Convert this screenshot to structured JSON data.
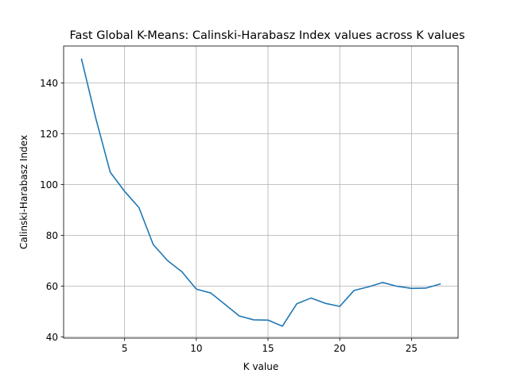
{
  "chart_data": {
    "type": "line",
    "title": "Fast Global K-Means: Calinski-Harabasz Index values across K values",
    "xlabel": "K value",
    "ylabel": "Calinski-Harabasz Index",
    "xlim": [
      0.75,
      28.25
    ],
    "ylim": [
      39.5,
      154.5
    ],
    "xticks": [
      5,
      10,
      15,
      20,
      25
    ],
    "yticks": [
      40,
      60,
      80,
      100,
      120,
      140
    ],
    "grid": true,
    "series": [
      {
        "color": "#1f77b4",
        "x": [
          2,
          3,
          4,
          5,
          6,
          7,
          8,
          9,
          10,
          11,
          12,
          13,
          14,
          15,
          16,
          17,
          18,
          19,
          20,
          21,
          22,
          23,
          24,
          25,
          26,
          27
        ],
        "y": [
          149.3,
          125.9,
          104.8,
          97.3,
          90.9,
          76.3,
          70.0,
          65.6,
          58.8,
          57.3,
          52.8,
          48.2,
          46.7,
          46.6,
          44.2,
          53.0,
          55.3,
          53.2,
          52.0,
          58.3,
          59.7,
          61.4,
          59.9,
          59.1,
          59.2,
          60.8
        ]
      }
    ]
  }
}
